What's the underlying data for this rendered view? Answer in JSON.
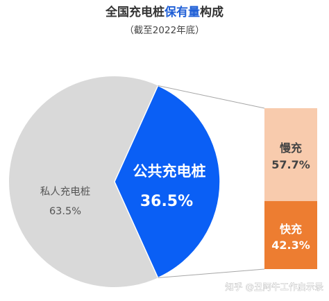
{
  "colors": {
    "private": "#d9d9d9",
    "public": "#0a5ff5",
    "slow": "#f8cbad",
    "fast": "#ed7d31",
    "connector": "#a6a6a6",
    "title_highlight": "#1f5fd6"
  },
  "chart_data": [
    {
      "type": "pie",
      "title_prefix": "全国充电桩",
      "title_highlight": "保有量",
      "title_suffix": "构成",
      "subtitle": "（截至2022年底）",
      "slices": [
        {
          "name": "私人充电桩",
          "value": 63.5,
          "label": "63.5%"
        },
        {
          "name": "公共充电桩",
          "value": 36.5,
          "label": "36.5%"
        }
      ]
    },
    {
      "type": "bar",
      "stacked": true,
      "breakdown_of": "公共充电桩",
      "segments": [
        {
          "name": "慢充",
          "value": 57.7,
          "label": "57.7%"
        },
        {
          "name": "快充",
          "value": 42.3,
          "label": "42.3%"
        }
      ]
    }
  ],
  "watermark": "知乎 @丑阿牛工作启示录"
}
